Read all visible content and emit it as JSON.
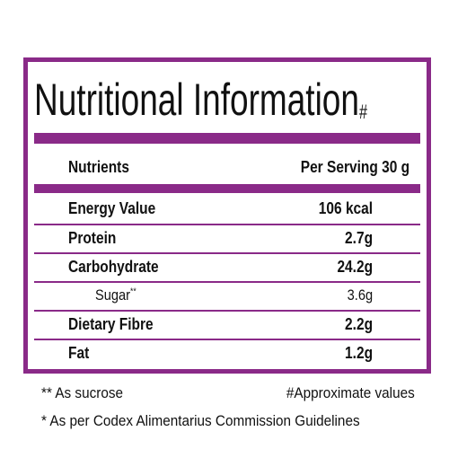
{
  "title": "Nutritional Information",
  "title_mark": "#",
  "header": [
    "Nutrients",
    "Per Serving 30 g"
  ],
  "rows": [
    {
      "name": "Energy Value",
      "value": "106 kcal"
    },
    {
      "name": "Protein",
      "value": "2.7g"
    },
    {
      "name": "Carbohydrate",
      "value": "24.2g"
    },
    {
      "name": "Sugar",
      "mark": "**",
      "value": "3.6g"
    },
    {
      "name": "Dietary Fibre",
      "value": "2.2g"
    },
    {
      "name": "Fat",
      "value": "1.2g"
    }
  ],
  "footnotes": [
    "** As sucrose",
    "#Approximate values",
    "* As per Codex Alimentarius Commission Guidelines"
  ]
}
